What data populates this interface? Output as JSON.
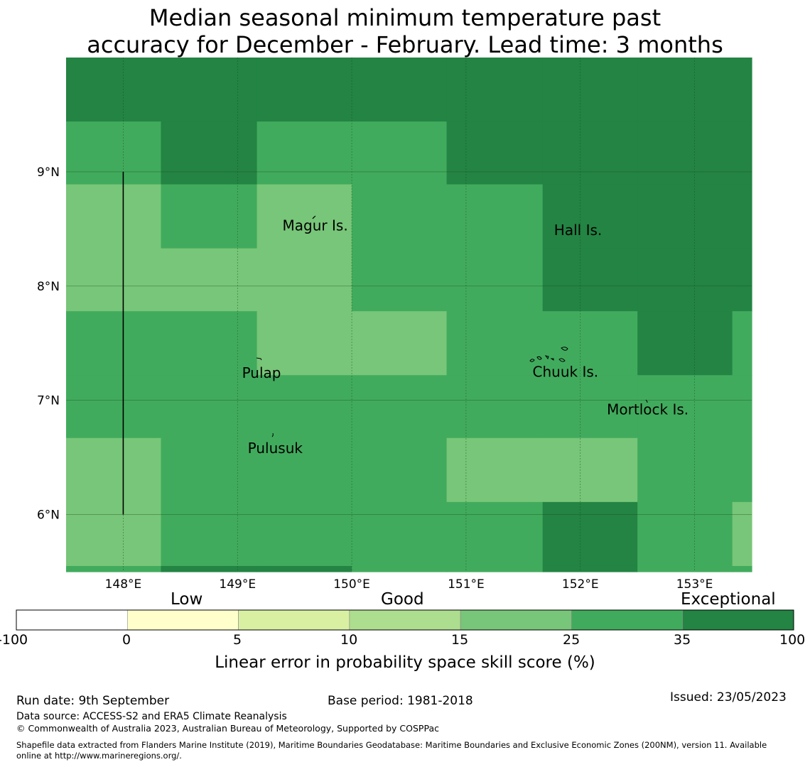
{
  "title": {
    "line1": "Median seasonal minimum temperature past",
    "line2": "accuracy for December - February. Lead time: 3 months"
  },
  "map": {
    "lon_range": [
      147.5,
      153.5
    ],
    "lat_range": [
      5.5,
      10.0
    ],
    "lon_ticks": [
      {
        "value": 148,
        "label": "148°E"
      },
      {
        "value": 149,
        "label": "149°E"
      },
      {
        "value": 150,
        "label": "150°E"
      },
      {
        "value": 151,
        "label": "151°E"
      },
      {
        "value": 152,
        "label": "152°E"
      },
      {
        "value": 153,
        "label": "153°E"
      }
    ],
    "lat_ticks": [
      {
        "value": 9,
        "label": "9°N"
      },
      {
        "value": 8,
        "label": "8°N"
      },
      {
        "value": 7,
        "label": "7°N"
      },
      {
        "value": 6,
        "label": "6°N"
      }
    ],
    "grid": true,
    "class_colors": [
      "#78c679",
      "#41ab5d",
      "#238443"
    ],
    "grid_lon_edges": [
      147.5,
      148.33,
      149.17,
      150.0,
      150.83,
      151.67,
      152.5,
      153.33,
      153.5
    ],
    "grid_lat_edges": [
      10.0,
      9.44,
      8.89,
      8.33,
      7.78,
      7.22,
      6.67,
      6.11,
      5.55,
      5.5
    ],
    "grid_classes": [
      [
        2,
        2,
        2,
        2,
        2,
        2,
        2,
        2
      ],
      [
        1,
        2,
        1,
        1,
        2,
        2,
        2,
        2
      ],
      [
        0,
        1,
        0,
        1,
        1,
        2,
        2,
        2
      ],
      [
        0,
        0,
        0,
        1,
        1,
        2,
        2,
        2
      ],
      [
        1,
        1,
        0,
        0,
        1,
        1,
        2,
        1
      ],
      [
        1,
        1,
        1,
        1,
        1,
        1,
        1,
        1
      ],
      [
        0,
        1,
        1,
        1,
        0,
        0,
        1,
        1
      ],
      [
        0,
        1,
        1,
        1,
        1,
        2,
        1,
        0
      ],
      [
        1,
        2,
        2,
        1,
        1,
        2,
        1,
        1
      ]
    ],
    "boundary_line": {
      "lon": 148.0,
      "lat_from": 6.0,
      "lat_to": 9.0
    },
    "places": [
      {
        "name": "Magur Is.",
        "lon": 149.68,
        "lat": 8.53
      },
      {
        "name": "Hall Is.",
        "lon": 151.98,
        "lat": 8.49
      },
      {
        "name": "Pulap",
        "lon": 149.21,
        "lat": 7.24
      },
      {
        "name": "Chuuk Is.",
        "lon": 151.87,
        "lat": 7.25
      },
      {
        "name": "Mortlock Is.",
        "lon": 152.59,
        "lat": 6.92
      },
      {
        "name": "Pulusuk",
        "lon": 149.33,
        "lat": 6.58
      }
    ]
  },
  "colorbar": {
    "categories": [
      {
        "label": "Low",
        "position": "over 0-5"
      },
      {
        "label": "Good",
        "position": "over 10-15"
      },
      {
        "label": "Exceptional",
        "position": "over 35-100"
      }
    ],
    "ticks": [
      "-100",
      "0",
      "5",
      "10",
      "15",
      "25",
      "35",
      "100"
    ],
    "colors": [
      "#ffffff",
      "#ffffcc",
      "#d9f0a3",
      "#addd8e",
      "#78c679",
      "#41ab5d",
      "#238443"
    ],
    "label": "Linear error in probability space skill score (%)"
  },
  "footer": {
    "run_date": "Run date: 9th September",
    "base_period": "Base period: 1981-2018",
    "issued": "Issued: 23/05/2023",
    "data_source": "Data source: ACCESS-S2 and ERA5 Climate Reanalysis",
    "copyright": "© Commonwealth of Australia 2023, Australian Bureau of Meteorology, Supported by COSPPac",
    "shapefile_line1": "Shapefile data extracted from Flanders Marine Institute (2019), Maritime Boundaries Geodatabase: Maritime Boundaries and Exclusive Economic Zones (200NM), version 11. Available",
    "shapefile_line2": "online at http://www.marineregions.org/."
  }
}
